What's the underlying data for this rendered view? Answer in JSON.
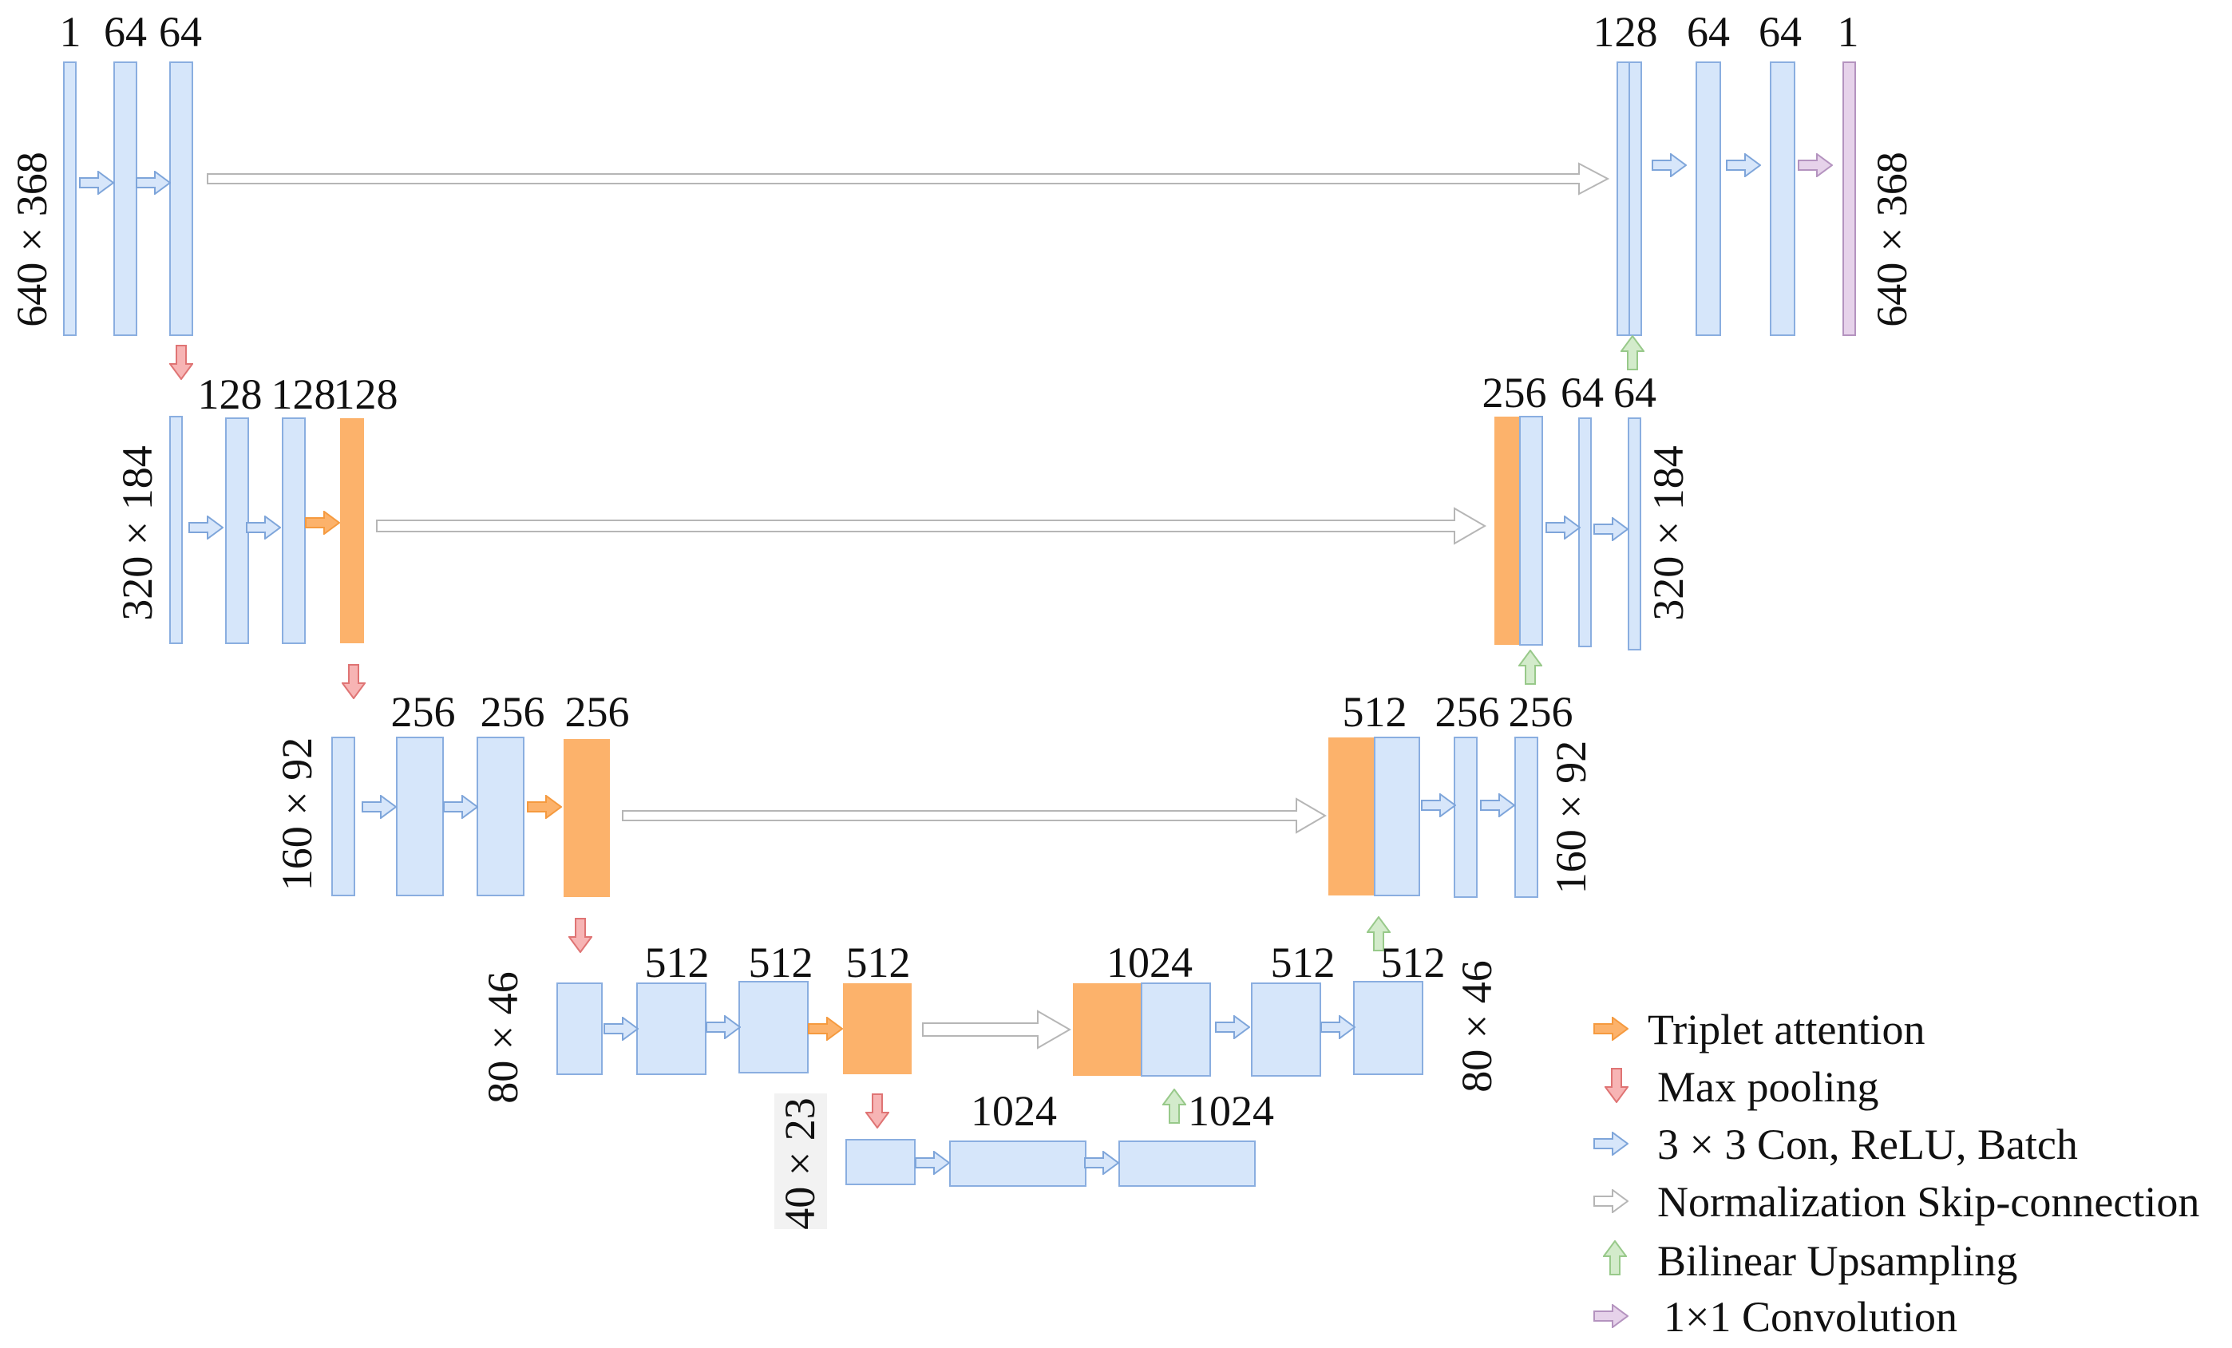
{
  "colors": {
    "block_fill": "#d6e6fa",
    "block_stroke": "#8aaee0",
    "attention_fill": "#fcb26b",
    "pool_fill": "#f7b4b4",
    "pool_stroke": "#df7474",
    "conv_fill": "#d7e6fa",
    "conv_stroke": "#7ea5da",
    "skip_fill": "#ffffff",
    "skip_stroke": "#b6b6b6",
    "up_fill": "#d3ebcb",
    "up_stroke": "#98c98a",
    "final_fill": "#e6d2ea",
    "final_stroke": "#b493bf"
  },
  "channels": {
    "r0_in": "1",
    "r0_c1": "64",
    "r0_c2": "64",
    "r1_c1": "128",
    "r1_c2": "128",
    "r1_att": "128",
    "r2_c1": "256",
    "r2_c2": "256",
    "r2_att": "256",
    "r3_c1": "512",
    "r3_c2": "512",
    "r3_att": "512",
    "r4_c1": "1024",
    "r4_c2": "1024",
    "u3_cat": "1024",
    "u3_c1": "512",
    "u3_c2": "512",
    "u2_cat": "512",
    "u2_c1": "256",
    "u2_c2": "256",
    "u1_cat": "256",
    "u1_c1": "64",
    "u1_c2": "64",
    "u0_cat": "128",
    "u0_c1": "64",
    "u0_c2": "64",
    "u0_out": "1"
  },
  "dims": {
    "r0_left": "640 × 368",
    "r0_right": "640 × 368",
    "r1_left": "320 × 184",
    "r1_right": "320 × 184",
    "r2_left": "160 × 92",
    "r2_right": "160 × 92",
    "r3_left": "80 × 46",
    "r3_right": "80 × 46",
    "r4_left": "40 × 23"
  },
  "legend": [
    {
      "icon": "triplet-attention-arrow-icon",
      "label": "Triplet attention"
    },
    {
      "icon": "max-pooling-arrow-icon",
      "label": "Max pooling"
    },
    {
      "icon": "conv-arrow-icon",
      "label": "3 × 3 Con, ReLU, Batch"
    },
    {
      "icon": "skip-connection-arrow-icon",
      "label": "Normalization Skip-connection"
    },
    {
      "icon": "upsampling-arrow-icon",
      "label": "Bilinear Upsampling"
    },
    {
      "icon": "one-by-one-conv-arrow-icon",
      "label": "1×1 Convolution"
    }
  ]
}
